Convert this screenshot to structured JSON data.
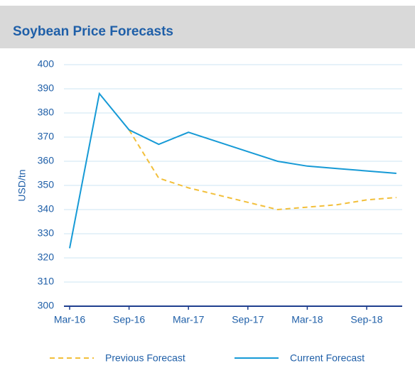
{
  "chart_data": {
    "type": "line",
    "title": "Soybean Price Forecasts",
    "ylabel": "USD/tn",
    "categories": [
      "Mar-16",
      null,
      "Sep-16",
      null,
      "Mar-17",
      null,
      "Sep-17",
      null,
      "Mar-18",
      null,
      "Sep-18",
      null
    ],
    "series": [
      {
        "name": "Previous Forecast",
        "color": "#f2bf3a",
        "dashed": true,
        "values": [
          null,
          null,
          373,
          353,
          349,
          346,
          343,
          340,
          341,
          342,
          344,
          345
        ]
      },
      {
        "name": "Current Forecast",
        "color": "#169ad6",
        "dashed": false,
        "values": [
          324,
          388,
          373,
          367,
          372,
          368,
          364,
          360,
          358,
          357,
          356,
          355
        ]
      }
    ],
    "ylim": [
      300,
      400
    ],
    "yticks": [
      300,
      310,
      320,
      330,
      340,
      350,
      360,
      370,
      380,
      390,
      400
    ],
    "grid": true,
    "legend": "bottom"
  }
}
